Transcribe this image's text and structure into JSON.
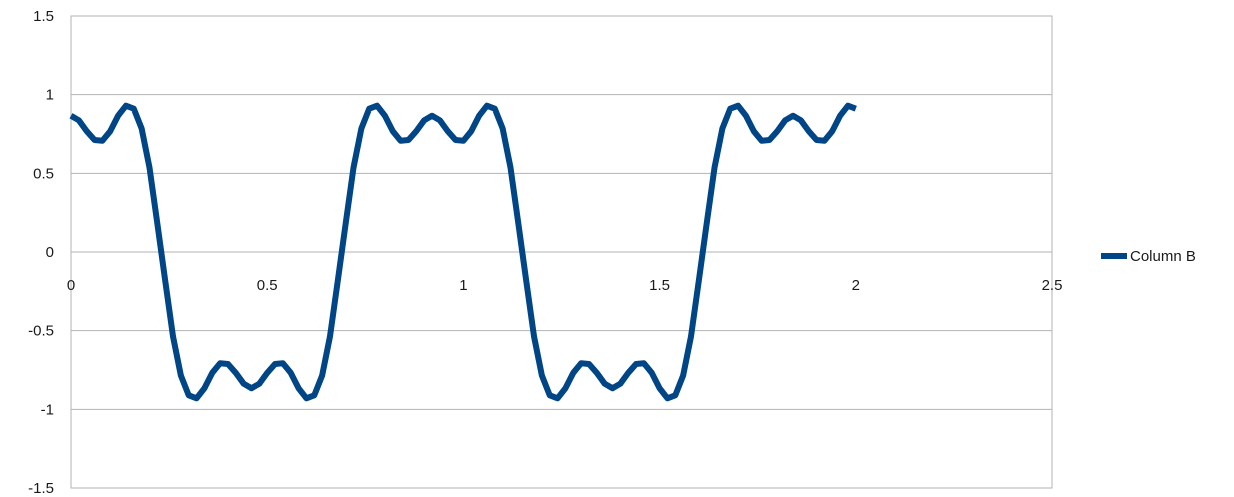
{
  "chart_data": {
    "type": "line",
    "title": "",
    "xlabel": "",
    "ylabel": "",
    "xlim": [
      0,
      2.5
    ],
    "ylim": [
      -1.5,
      1.5
    ],
    "x_ticks": [
      "0",
      "0.5",
      "1",
      "1.5",
      "2",
      "2.5"
    ],
    "y_ticks": [
      "1.5",
      "1",
      "0.5",
      "0",
      "-0.5",
      "-1",
      "-1.5"
    ],
    "grid": "horizontal",
    "legend_position": "right",
    "series": [
      {
        "name": "Column B",
        "color": "#004586",
        "x": [
          0,
          0.02,
          0.04,
          0.06,
          0.08,
          0.1,
          0.12,
          0.14,
          0.16,
          0.18,
          0.2,
          0.22,
          0.24,
          0.26,
          0.28,
          0.3,
          0.32,
          0.34,
          0.36,
          0.38,
          0.4,
          0.42,
          0.44,
          0.46,
          0.48,
          0.5,
          0.52,
          0.54,
          0.56,
          0.58,
          0.6,
          0.62,
          0.64,
          0.66,
          0.68,
          0.7,
          0.72,
          0.74,
          0.76,
          0.78,
          0.8,
          0.82,
          0.84,
          0.86,
          0.88,
          0.9,
          0.92,
          0.94,
          0.96,
          0.98,
          1,
          1.02,
          1.04,
          1.06,
          1.08,
          1.1,
          1.12,
          1.14,
          1.16,
          1.18,
          1.2,
          1.22,
          1.24,
          1.26,
          1.28,
          1.3,
          1.32,
          1.34,
          1.36,
          1.38,
          1.4,
          1.42,
          1.44,
          1.46,
          1.48,
          1.5,
          1.52,
          1.54,
          1.56,
          1.58,
          1.6,
          1.62,
          1.64,
          1.66,
          1.68,
          1.7,
          1.72,
          1.74,
          1.76,
          1.78,
          1.8,
          1.82,
          1.84,
          1.86,
          1.88,
          1.9,
          1.92,
          1.94,
          1.96,
          1.98,
          2
        ],
        "values": [
          0.866,
          0.837,
          0.768,
          0.712,
          0.707,
          0.768,
          0.866,
          0.93,
          0.911,
          0.785,
          0.537,
          0.181,
          -0.181,
          -0.537,
          -0.785,
          -0.911,
          -0.93,
          -0.866,
          -0.768,
          -0.707,
          -0.712,
          -0.768,
          -0.837,
          -0.866,
          -0.837,
          -0.768,
          -0.712,
          -0.707,
          -0.768,
          -0.866,
          -0.93,
          -0.911,
          -0.785,
          -0.537,
          -0.181,
          0.181,
          0.537,
          0.785,
          0.911,
          0.93,
          0.866,
          0.768,
          0.707,
          0.712,
          0.768,
          0.837,
          0.866,
          0.837,
          0.768,
          0.712,
          0.707,
          0.768,
          0.866,
          0.93,
          0.911,
          0.785,
          0.537,
          0.181,
          -0.181,
          -0.537,
          -0.785,
          -0.911,
          -0.93,
          -0.866,
          -0.768,
          -0.707,
          -0.712,
          -0.768,
          -0.837,
          -0.866,
          -0.837,
          -0.768,
          -0.712,
          -0.707,
          -0.768,
          -0.866,
          -0.93,
          -0.911,
          -0.785,
          -0.537,
          -0.181,
          0.181,
          0.537,
          0.785,
          0.911,
          0.93,
          0.866,
          0.768,
          0.707,
          0.712,
          0.768,
          0.837,
          0.866,
          0.837,
          0.768,
          0.712,
          0.707,
          0.768,
          0.866,
          0.93,
          0.911
        ]
      }
    ]
  }
}
